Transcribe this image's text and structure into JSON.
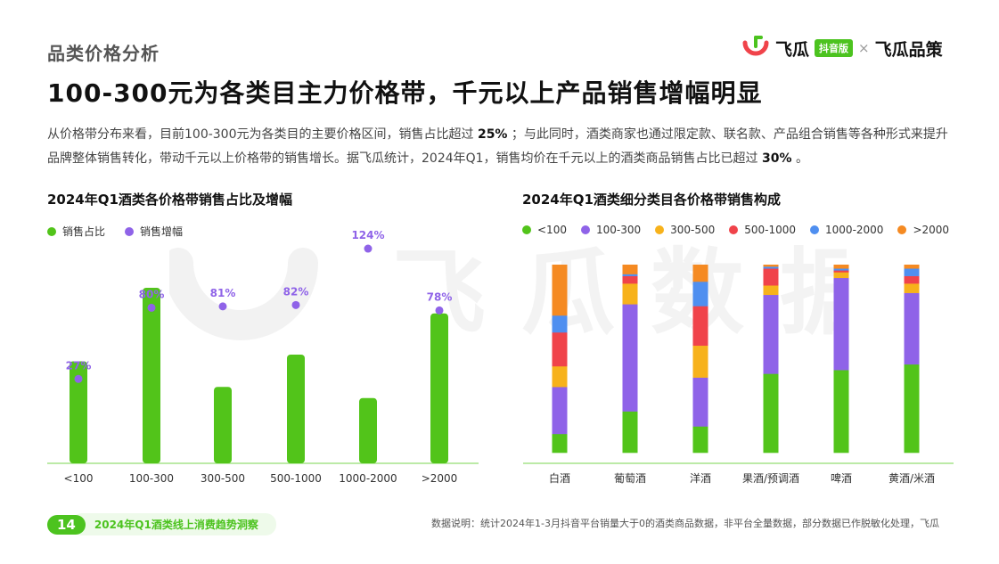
{
  "header": {
    "section_title": "品类价格分析",
    "headline": "100-300元为各类目主力价格带，千元以上产品销售增幅明显",
    "desc_part1": "从价格带分布来看，目前100-300元为各类目的主要价格区间，销售占比超过",
    "desc_highlight1": "25%",
    "desc_part2": "；与此同时，酒类商家也通过限定款、联名款、产品组合销售等各种形式来提升品牌整体销售转化，带动千元以上价格带的销售增长。据飞瓜统计，2024年Q1，销售均价在千元以上的酒类商品销售占比已超过",
    "desc_highlight2": "30%",
    "desc_part3": "。"
  },
  "logo": {
    "brand": "飞瓜",
    "badge": "抖音版",
    "times": "×",
    "brand2": "飞瓜品策",
    "icon": "feigua-logo-icon"
  },
  "watermark": "飞瓜数据",
  "colors": {
    "green": "#52c41a",
    "purple": "#8f63e8",
    "yellow": "#f7b21b",
    "red": "#f0434a",
    "blue": "#4f8ff0",
    "orange": "#f58a22",
    "axis": "#a6e38a"
  },
  "chart_data": [
    {
      "type": "bar",
      "title": "2024年Q1酒类各价格带销售占比及增幅",
      "legend": [
        "销售占比",
        "销售增幅"
      ],
      "categories": [
        "<100",
        "100-300",
        "300-500",
        "500-1000",
        "1000-2000",
        ">2000"
      ],
      "series": [
        {
          "name": "销售占比",
          "values": [
            8.2,
            14.8,
            5.9,
            8.8,
            4.9,
            12.5
          ]
        },
        {
          "name": "销售增幅",
          "values": [
            27,
            80,
            81,
            82,
            124,
            78
          ],
          "labels": [
            "27%",
            "80%",
            "81%",
            "82%",
            "124%",
            "78%"
          ]
        }
      ]
    },
    {
      "type": "bar",
      "stacked": true,
      "title": "2024年Q1酒类细分类目各价格带销售构成",
      "categories": [
        "白酒",
        "葡萄酒",
        "洋酒",
        "果酒/预调酒",
        "啤酒",
        "黄酒/米酒"
      ],
      "legend": [
        "<100",
        "100-300",
        "300-500",
        "500-1000",
        "1000-2000",
        ">2000"
      ],
      "ylim": [
        0,
        100
      ],
      "series": [
        {
          "name": "<100",
          "values": [
            10,
            22,
            14,
            42,
            44,
            47
          ]
        },
        {
          "name": "100-300",
          "values": [
            25,
            57,
            26,
            42,
            49,
            38
          ]
        },
        {
          "name": "300-500",
          "values": [
            11,
            11,
            17,
            5,
            3,
            5
          ]
        },
        {
          "name": "500-1000",
          "values": [
            18,
            4,
            21,
            9,
            1,
            4
          ]
        },
        {
          "name": "1000-2000",
          "values": [
            9,
            1,
            13,
            1,
            1,
            4
          ]
        },
        {
          "name": ">2000",
          "values": [
            27,
            5,
            9,
            1,
            2,
            2
          ]
        }
      ]
    }
  ],
  "footer": {
    "page_number": "14",
    "report_title": "2024年Q1酒类线上消费趋势洞察",
    "footnote": "数据说明：统计2024年1-3月抖音平台销量大于0的酒类商品数据，非平台全量数据，部分数据已作脱敏化处理，飞瓜"
  }
}
